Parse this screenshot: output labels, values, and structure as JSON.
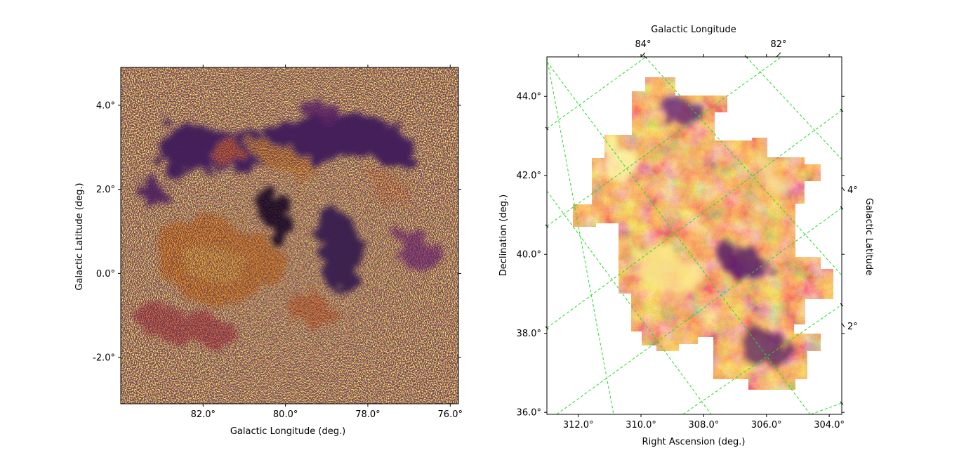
{
  "chart_data": [
    {
      "type": "heatmap",
      "colormap": "inferno",
      "xlabel": "Galactic Longitude (deg.)",
      "ylabel": "Galactic Latitude (deg.)",
      "xlim": [
        84.0,
        75.8
      ],
      "ylim": [
        -3.1,
        4.9
      ],
      "xticks": [
        {
          "value": 82.0,
          "label": "82.0°"
        },
        {
          "value": 80.0,
          "label": "80.0°"
        },
        {
          "value": 78.0,
          "label": "78.0°"
        },
        {
          "value": 76.0,
          "label": "76.0°"
        }
      ],
      "yticks": [
        {
          "value": 4.0,
          "label": "4.0°"
        },
        {
          "value": 2.0,
          "label": "2.0°"
        },
        {
          "value": 0.0,
          "label": "0.0°"
        },
        {
          "value": -2.0,
          "label": "-2.0°"
        }
      ],
      "grid": false
    },
    {
      "type": "heatmap",
      "colormap": "inferno",
      "xlabel": "Right Ascension (deg.)",
      "ylabel": "Declination (deg.)",
      "top_xlabel": "Galactic Longitude",
      "right_ylabel": "Galactic Latitude",
      "xlim": [
        313.0,
        303.6
      ],
      "ylim": [
        35.95,
        45.0
      ],
      "xticks": [
        {
          "value": 312.0,
          "label": "312.0°"
        },
        {
          "value": 310.0,
          "label": "310.0°"
        },
        {
          "value": 308.0,
          "label": "308.0°"
        },
        {
          "value": 306.0,
          "label": "306.0°"
        },
        {
          "value": 304.0,
          "label": "304.0°"
        }
      ],
      "yticks": [
        {
          "value": 44.0,
          "label": "44.0°"
        },
        {
          "value": 42.0,
          "label": "42.0°"
        },
        {
          "value": 40.0,
          "label": "40.0°"
        },
        {
          "value": 38.0,
          "label": "38.0°"
        },
        {
          "value": 36.0,
          "label": "36.0°"
        }
      ],
      "top_ticks": [
        {
          "label": "84°"
        },
        {
          "label": "82°"
        }
      ],
      "right_ticks": [
        {
          "label": "4°"
        },
        {
          "label": "2°"
        }
      ],
      "grid": true,
      "grid_color": "#22dd22"
    }
  ]
}
